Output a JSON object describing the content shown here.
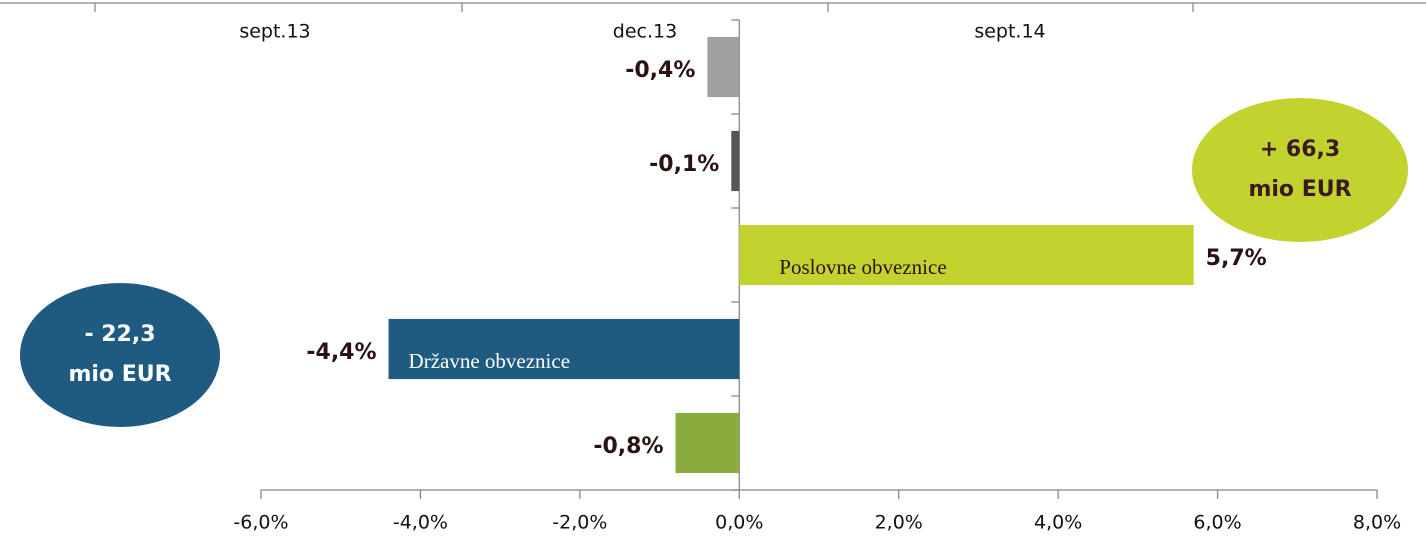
{
  "chart_data": {
    "type": "barh",
    "top_labels": [
      "sept.13",
      "dec.13",
      "sept.14"
    ],
    "categories": [
      null,
      null,
      "Poslovne obveznice",
      "Državne obveznice",
      null
    ],
    "values": [
      -0.4,
      -0.1,
      5.7,
      -4.4,
      -0.8
    ],
    "value_labels": [
      "-0,4%",
      "-0,1%",
      "5,7%",
      "-4,4%",
      "-0,8%"
    ],
    "colors": [
      "#a0a0a0",
      "#555555",
      "#c2d22f",
      "#1f5a80",
      "#8aac3c"
    ],
    "xlim": [
      -6,
      8
    ],
    "xticks": [
      {
        "value": -6,
        "label": "-6,0%"
      },
      {
        "value": -4,
        "label": "-4,0%"
      },
      {
        "value": -2,
        "label": "-2,0%"
      },
      {
        "value": 0,
        "label": "0,0%"
      },
      {
        "value": 2,
        "label": "2,0%"
      },
      {
        "value": 4,
        "label": "4,0%"
      },
      {
        "value": 6,
        "label": "6,0%"
      },
      {
        "value": 8,
        "label": "8,0%"
      }
    ],
    "annotations": [
      {
        "lines": [
          "+ 66,3",
          "mio EUR"
        ],
        "color": "#c2d22f",
        "text_color": "#3a1a1a"
      },
      {
        "lines": [
          "- 22,3",
          "mio EUR"
        ],
        "color": "#1f5a80",
        "text_color": "#ffffff"
      }
    ]
  }
}
